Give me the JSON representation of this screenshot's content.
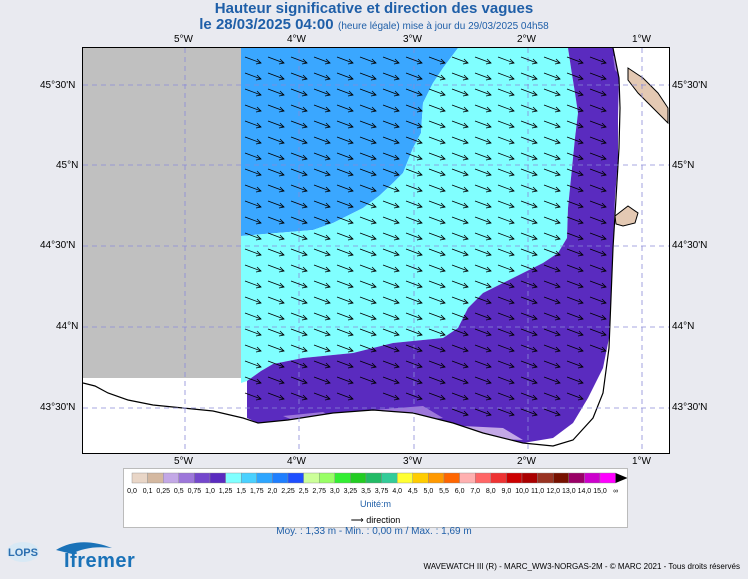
{
  "title": "Hauteur significative et direction des vagues",
  "subtitle": {
    "date": "le 28/03/2025 04:00",
    "note": "(heure légale) mise à jour du 29/03/2025 04h58"
  },
  "axes": {
    "lon_ticks": [
      "5°W",
      "4°W",
      "3°W",
      "2°W",
      "1°W"
    ],
    "lat_ticks": [
      "45°30'N",
      "45°N",
      "44°30'N",
      "44°N",
      "43°30'N"
    ]
  },
  "legend": {
    "labels": [
      "0,0",
      "0,1",
      "0,25",
      "0,5",
      "0,75",
      "1,0",
      "1,25",
      "1,5",
      "1,75",
      "2,0",
      "2,25",
      "2,5",
      "2,75",
      "3,0",
      "3,25",
      "3,5",
      "3,75",
      "4,0",
      "4,5",
      "5,0",
      "5,5",
      "6,0",
      "7,0",
      "8,0",
      "9,0",
      "10,0",
      "11,0",
      "12,0",
      "13,0",
      "14,0",
      "15,0",
      "∞"
    ],
    "colors": [
      "#e9d6c7",
      "#d4b8a0",
      "#c3a8e6",
      "#9d77da",
      "#7447cc",
      "#5a2bbf",
      "#80ffff",
      "#4ad1ff",
      "#2ea6ff",
      "#1f7fff",
      "#1e4fff",
      "#ccff99",
      "#99ff66",
      "#33ee33",
      "#22cc22",
      "#22bb66",
      "#33cc99",
      "#ffff33",
      "#ffcc00",
      "#ff9900",
      "#ff6600",
      "#ffb0b0",
      "#ff6666",
      "#ee3333",
      "#cc0000",
      "#aa0000",
      "#993322",
      "#771100",
      "#990066",
      "#cc00cc",
      "#ff00ff"
    ],
    "unit": "Unité:m",
    "direction_label": "direction"
  },
  "stats": "Moy. : 1,33 m  -  Min. : 0,00 m / Max. : 1,69 m",
  "footer": "WAVEWATCH III (R) - MARC_WW3-NORGAS-2M - © MARC 2021 - Tous droits réservés",
  "logos": {
    "lops": "LOPS",
    "ifremer": "Ifremer"
  },
  "colors": {
    "land": "#e4c9b3",
    "nodata": "#c0c0c0",
    "band_1": "#3aa7ff",
    "band_2": "#80ffff",
    "band_3": "#5a2bbf"
  }
}
